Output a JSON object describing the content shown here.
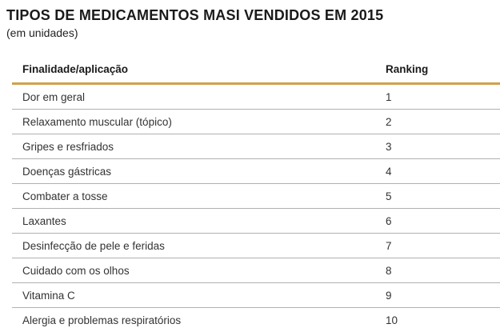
{
  "header": {
    "title": "TIPOS DE MEDICAMENTOS MASI VENDIDOS EM 2015",
    "subtitle": "(em unidades)"
  },
  "table": {
    "columns": [
      "Finalidade/aplicação",
      "Ranking"
    ],
    "rows": [
      {
        "finalidade": "Dor em geral",
        "ranking": "1"
      },
      {
        "finalidade": "Relaxamento muscular (tópico)",
        "ranking": "2"
      },
      {
        "finalidade": "Gripes e resfriados",
        "ranking": "3"
      },
      {
        "finalidade": "Doenças gástricas",
        "ranking": "4"
      },
      {
        "finalidade": "Combater a tosse",
        "ranking": "5"
      },
      {
        "finalidade": "Laxantes",
        "ranking": "6"
      },
      {
        "finalidade": "Desinfecção de pele e feridas",
        "ranking": "7"
      },
      {
        "finalidade": "Cuidado com os olhos",
        "ranking": "8"
      },
      {
        "finalidade": "Vitamina C",
        "ranking": "9"
      },
      {
        "finalidade": "Alergia e problemas respiratórios",
        "ranking": "10"
      }
    ]
  },
  "colors": {
    "header_rule_gold": "#D0A24C",
    "row_separator_gray": "#B0B0B0",
    "table_bottom_gray": "#8C8C8C",
    "title_text": "#1A1A1A",
    "body_text": "#333333"
  },
  "chart_data": {
    "type": "table",
    "title": "TIPOS DE MEDICAMENTOS MASI VENDIDOS EM 2015 (em unidades)",
    "columns": [
      "Finalidade/aplicação",
      "Ranking"
    ],
    "categories": [
      "Dor em geral",
      "Relaxamento muscular (tópico)",
      "Gripes e resfriados",
      "Doenças gástricas",
      "Combater a tosse",
      "Laxantes",
      "Desinfecção de pele e feridas",
      "Cuidado com os olhos",
      "Vitamina C",
      "Alergia e problemas respiratórios"
    ],
    "values": [
      1,
      2,
      3,
      4,
      5,
      6,
      7,
      8,
      9,
      10
    ]
  }
}
